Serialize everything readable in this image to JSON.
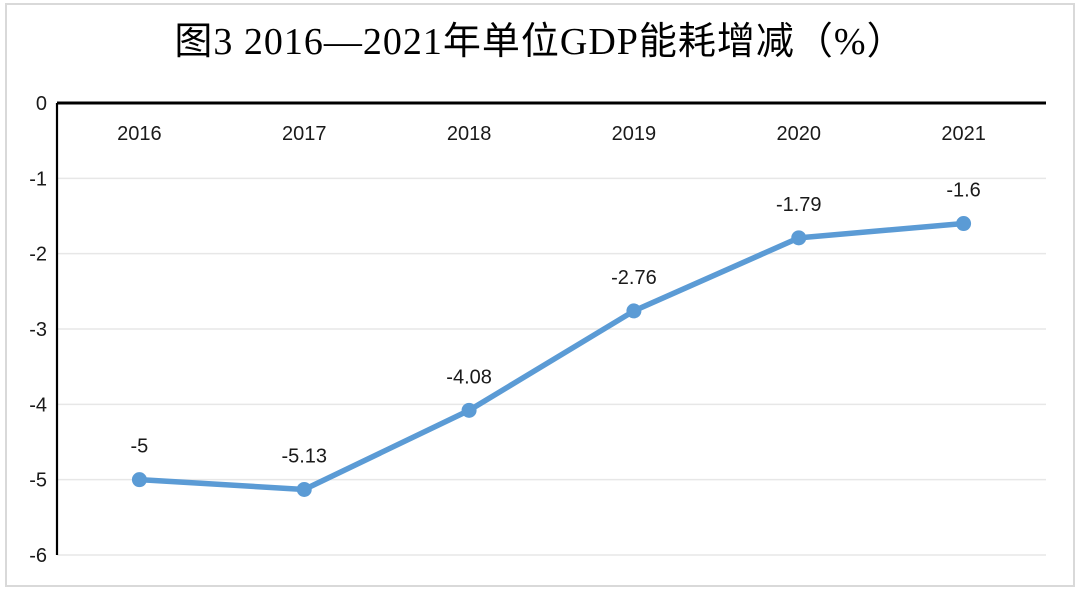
{
  "page": {
    "background": "#ffffff",
    "border_color": "#d9d9d9"
  },
  "chart_data": {
    "type": "line",
    "title": "图3 2016—2021年单位GDP能耗增减（%）",
    "categories": [
      "2016",
      "2017",
      "2018",
      "2019",
      "2020",
      "2021"
    ],
    "series": [
      {
        "name": "",
        "values": [
          -5,
          -5.13,
          -4.08,
          -2.76,
          -1.79,
          -1.6
        ]
      }
    ],
    "data_labels": [
      "-5",
      "-5.13",
      "-4.08",
      "-2.76",
      "-1.79",
      "-1.6"
    ],
    "y_ticks": [
      "0",
      "-1",
      "-2",
      "-3",
      "-4",
      "-5",
      "-6"
    ],
    "ylim": [
      -6,
      0
    ],
    "xlabel": "",
    "ylabel": "",
    "grid": true,
    "legend_position": "none",
    "colors": {
      "line": "#5B9BD5",
      "marker": "#5B9BD5",
      "gridline": "#e7e7e7",
      "axis": "#000000",
      "tick_label": "#1a1a1a",
      "data_label": "#1a1a1a",
      "title": "#000000"
    }
  }
}
